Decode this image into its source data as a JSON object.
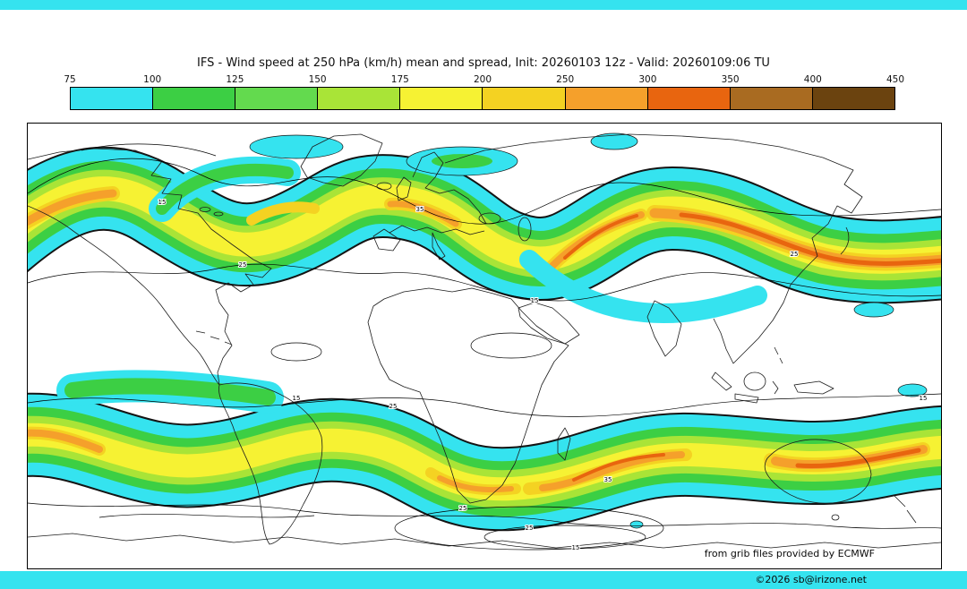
{
  "page": {
    "background": "#ffffff",
    "edge_strip_color": "#35e3ef"
  },
  "header": {
    "title": "IFS - Wind speed at 250 hPa (km/h) mean and spread, Init: 20260103 12z - Valid: 20260109:06 TU"
  },
  "colorbar": {
    "ticks": [
      "75",
      "100",
      "125",
      "150",
      "175",
      "200",
      "250",
      "300",
      "350",
      "400",
      "450"
    ],
    "colors": [
      "#35e3ef",
      "#3ccf44",
      "#63da4e",
      "#a9e437",
      "#f6f233",
      "#f4d222",
      "#f5a02b",
      "#e8650f",
      "#a96b21",
      "#6b430f"
    ],
    "outline": "#000000"
  },
  "map": {
    "frame_color": "#000000",
    "ocean_color": "#ffffff",
    "contour_labels": [
      "15",
      "25",
      "35",
      "15",
      "25",
      "15",
      "35",
      "25",
      "15",
      "25",
      "15",
      "25"
    ],
    "attribution": "from grib files provided by ECMWF",
    "copyright": "©2026 sb@irizone.net"
  },
  "chart_data": {
    "type": "heatmap",
    "title": "IFS - Wind speed at 250 hPa (km/h) mean and spread, Init: 20260103 12z - Valid: 20260109:06 TU",
    "variable": "Wind speed at 250 hPa (ensemble mean, filled) with ensemble spread (black contours)",
    "units": "km/h",
    "init": "20260103 12z",
    "valid": "20260109:06 TU",
    "region": "global",
    "colorbar_levels": [
      75,
      100,
      125,
      150,
      175,
      200,
      250,
      300,
      350,
      400,
      450
    ],
    "colorbar_colors": [
      "#35e3ef",
      "#3ccf44",
      "#63da4e",
      "#a9e437",
      "#f6f233",
      "#f4d222",
      "#f5a02b",
      "#e8650f",
      "#a96b21",
      "#6b430f"
    ],
    "spread_contour_levels": [
      15,
      25,
      35
    ],
    "legend_position": "top",
    "annotations": [
      "Northern-hemisphere jet stream band with cores above 250-300 km/h over the North Atlantic and East Asia / West Pacific",
      "Southern-hemisphere jet band with cores above 250 km/h over the southern Indian Ocean and South Pacific",
      "Cyan regions indicate wind speeds near 75-100 km/h; white regions below 75 km/h"
    ]
  }
}
